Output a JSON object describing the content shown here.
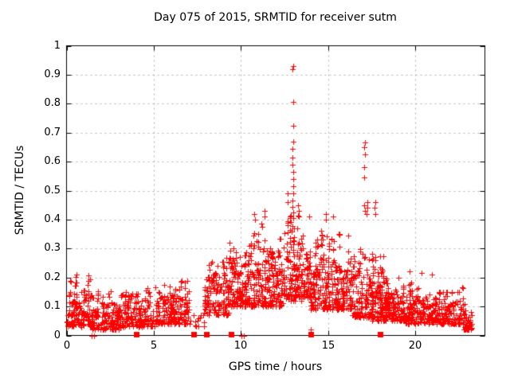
{
  "chart_data": {
    "type": "scatter",
    "title": "Day 075 of 2015, SRMTID for receiver sutm",
    "xlabel": "GPS time / hours",
    "ylabel": "SRMTID / TECUs",
    "xlim": [
      0,
      24
    ],
    "ylim": [
      0,
      1
    ],
    "xticks": [
      0,
      5,
      10,
      15,
      20
    ],
    "yticks": [
      0,
      0.1,
      0.2,
      0.3,
      0.4,
      0.5,
      0.6,
      0.7,
      0.8,
      0.9,
      1
    ],
    "grid": {
      "show": true,
      "color": "#b0b0b0",
      "dash": [
        2,
        4
      ]
    },
    "axis_color": "#000000",
    "marker": {
      "shape": "plus",
      "size": 7,
      "color": "#ff0000"
    },
    "series_name": "SRMTID",
    "seed": 75,
    "note": "dense burst-column scatter; segments give t-range, point count and y-envelope read from the plot",
    "segments": [
      {
        "t0": 0.0,
        "t1": 1.5,
        "n": 160,
        "y0": 0.03,
        "y1": 0.22
      },
      {
        "t0": 1.5,
        "t1": 3.1,
        "n": 150,
        "y0": 0.02,
        "y1": 0.16
      },
      {
        "t0": 3.1,
        "t1": 4.8,
        "n": 160,
        "y0": 0.03,
        "y1": 0.2
      },
      {
        "t0": 4.8,
        "t1": 5.1,
        "n": 12,
        "y0": 0.03,
        "y1": 0.12
      },
      {
        "t0": 5.1,
        "t1": 7.0,
        "n": 190,
        "y0": 0.04,
        "y1": 0.21
      },
      {
        "t0": 7.0,
        "t1": 7.9,
        "n": 14,
        "y0": 0.03,
        "y1": 0.11
      },
      {
        "t0": 7.9,
        "t1": 9.35,
        "n": 150,
        "y0": 0.07,
        "y1": 0.31
      },
      {
        "t0": 9.35,
        "t1": 10.25,
        "n": 110,
        "y0": 0.1,
        "y1": 0.36
      },
      {
        "t0": 10.25,
        "t1": 12.45,
        "n": 270,
        "y0": 0.1,
        "y1": 0.41
      },
      {
        "t0": 12.45,
        "t1": 13.55,
        "n": 150,
        "y0": 0.12,
        "y1": 0.42
      },
      {
        "t0": 13.55,
        "t1": 14.0,
        "n": 55,
        "y0": 0.13,
        "y1": 0.38
      },
      {
        "t0": 14.0,
        "t1": 16.35,
        "n": 280,
        "y0": 0.09,
        "y1": 0.37
      },
      {
        "t0": 16.35,
        "t1": 17.55,
        "n": 140,
        "y0": 0.06,
        "y1": 0.33
      },
      {
        "t0": 17.55,
        "t1": 18.4,
        "n": 130,
        "y0": 0.05,
        "y1": 0.3
      },
      {
        "t0": 18.4,
        "t1": 19.4,
        "n": 110,
        "y0": 0.05,
        "y1": 0.24
      },
      {
        "t0": 19.4,
        "t1": 22.75,
        "n": 330,
        "y0": 0.04,
        "y1": 0.19
      },
      {
        "t0": 22.75,
        "t1": 23.25,
        "n": 45,
        "y0": 0.02,
        "y1": 0.12
      }
    ],
    "feature_columns": [
      {
        "x": 10.8,
        "ys": [
          0.42,
          0.4
        ]
      },
      {
        "x": 11.35,
        "ys": [
          0.43,
          0.41
        ]
      },
      {
        "x": 12.7,
        "ys": [
          0.49,
          0.46
        ]
      },
      {
        "x": 13.0,
        "ys": [
          0.93,
          0.918,
          0.806,
          0.724,
          0.67,
          0.645,
          0.615,
          0.59,
          0.565,
          0.54,
          0.515,
          0.49,
          0.465,
          0.445,
          0.425,
          0.405
        ]
      },
      {
        "x": 13.3,
        "ys": [
          0.45,
          0.43,
          0.41
        ]
      },
      {
        "x": 13.9,
        "ys": [
          0.41
        ]
      },
      {
        "x": 14.0,
        "ys": [
          0.02
        ]
      },
      {
        "x": 14.9,
        "ys": [
          0.42,
          0.4
        ]
      },
      {
        "x": 15.3,
        "ys": [
          0.41
        ]
      },
      {
        "x": 17.1,
        "ys": [
          0.665,
          0.65,
          0.625,
          0.58,
          0.545,
          0.45,
          0.43
        ]
      },
      {
        "x": 17.25,
        "ys": [
          0.46,
          0.44,
          0.42
        ]
      },
      {
        "x": 17.7,
        "ys": [
          0.46,
          0.44,
          0.42
        ]
      },
      {
        "x": 19.65,
        "ys": [
          0.22
        ]
      },
      {
        "x": 20.35,
        "ys": [
          0.215
        ]
      },
      {
        "x": 21.0,
        "ys": [
          0.21
        ]
      }
    ],
    "zero_squares": [
      4.0,
      7.3,
      8.0,
      9.45,
      14.0,
      18.0
    ],
    "zero_plus": [
      1.45,
      1.57,
      10.05,
      10.17
    ]
  }
}
